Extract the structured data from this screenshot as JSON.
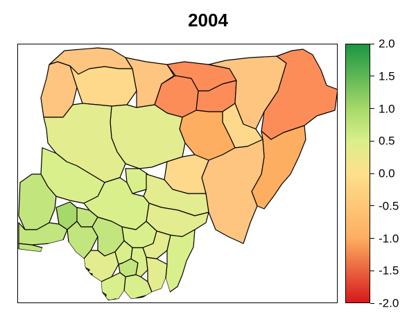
{
  "title": "2004",
  "legend": {
    "type": "continuous-colorbar",
    "min": -2.0,
    "max": 2.0,
    "tick_labels": [
      "2.0",
      "1.5",
      "1.0",
      "0.5",
      "0.0",
      "-0.5",
      "-1.0",
      "-1.5",
      "-2.0"
    ],
    "tick_values": [
      2.0,
      1.5,
      1.0,
      0.5,
      0.0,
      -0.5,
      -1.0,
      -1.5,
      -2.0
    ],
    "colors": {
      "2.0": "#1a9641",
      "1.0": "#a6d96a",
      "0.5": "#d9ef8b",
      "0.0": "#fee08b",
      "-1.0": "#fdae61",
      "-2.0": "#d7191c"
    }
  },
  "map": {
    "region": "Nigeria",
    "palette": {
      "red_orange": "#fc8d59",
      "orange": "#fdae61",
      "light_orange": "#fdc580",
      "pale_yellow": "#fed98b",
      "yellow": "#ffffbf",
      "light_yellow_green": "#e3ec8f",
      "yellow_green": "#d9ef8b",
      "light_green": "#c2e57e",
      "green": "#a6d96a"
    }
  }
}
